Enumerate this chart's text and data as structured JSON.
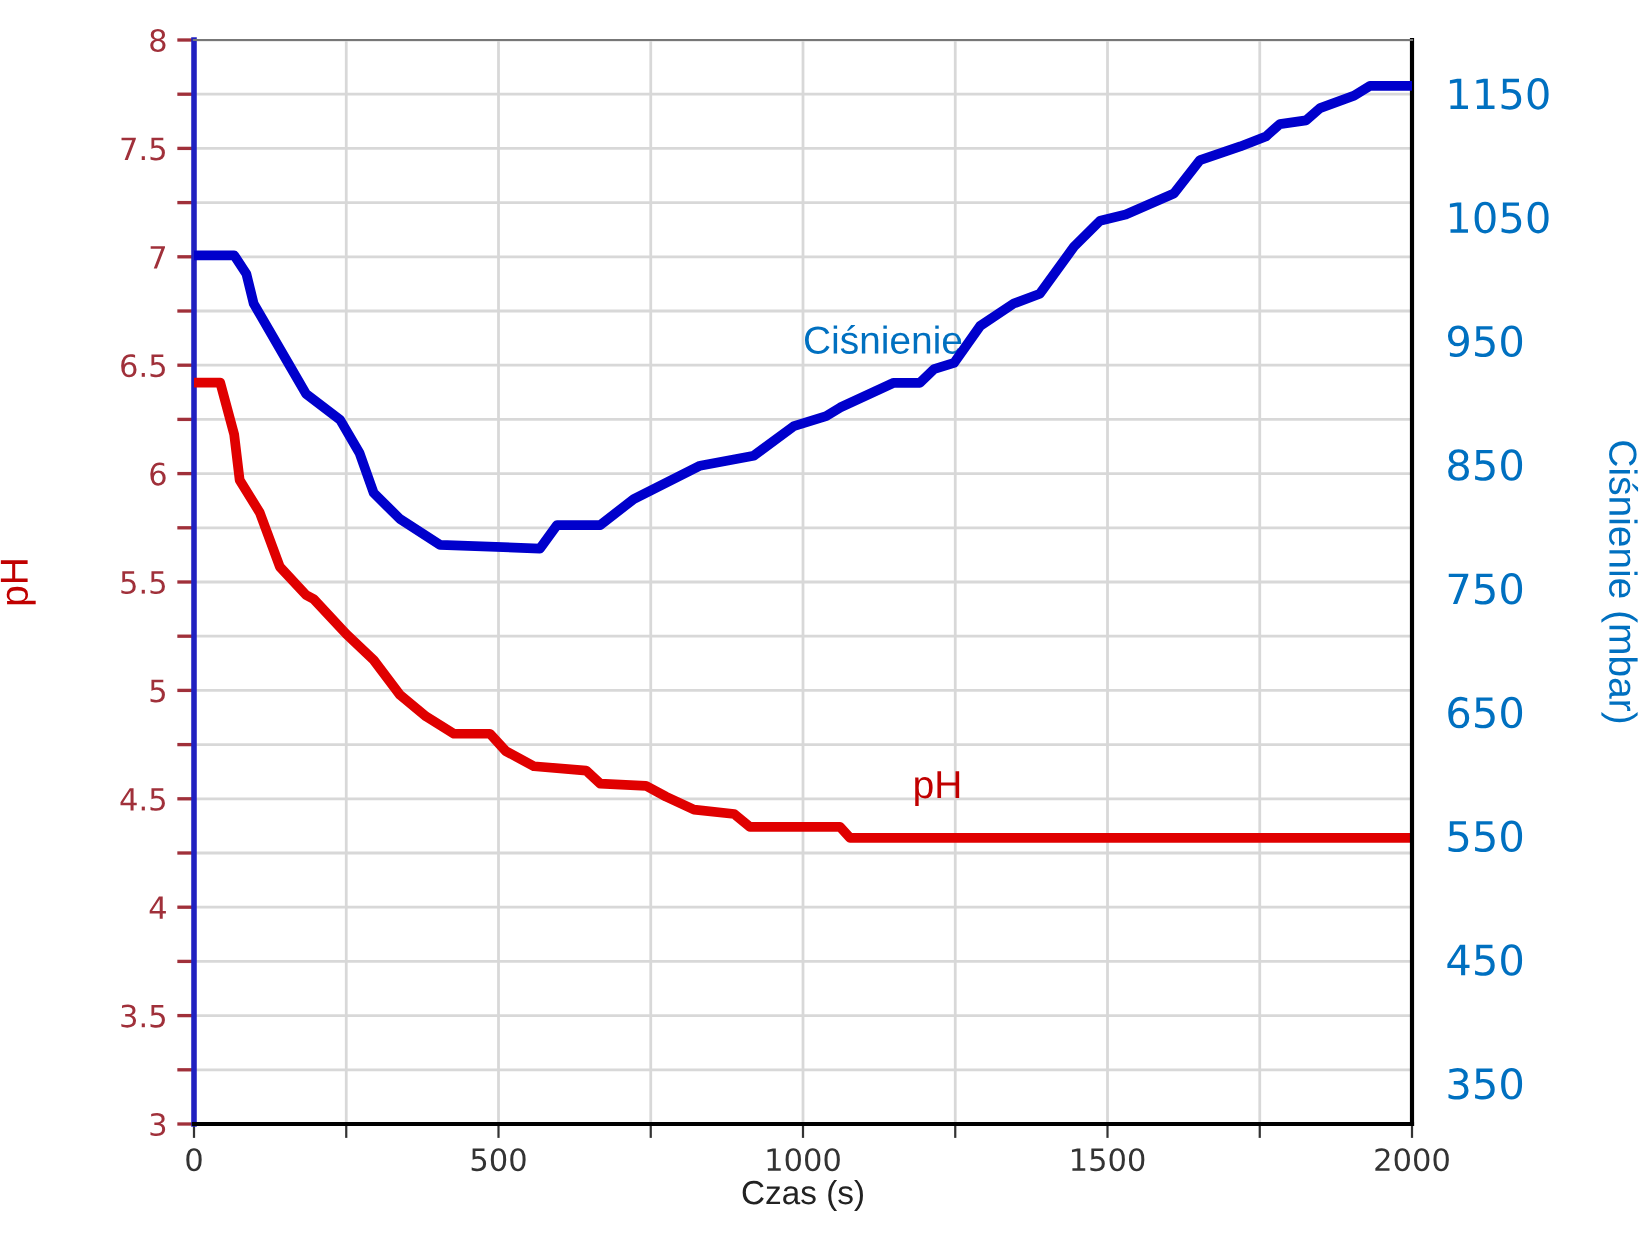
{
  "chart_data": {
    "type": "line",
    "xlabel": "Czas (s)",
    "ylabel": "pH",
    "y2label": "Ciśnienie (mbar)",
    "xlim": [
      0,
      2000
    ],
    "xticks": [
      0,
      {
        "value": 250,
        "label": null
      },
      500,
      {
        "value": 750,
        "label": null
      },
      1000,
      {
        "value": 1250,
        "label": null
      },
      1500,
      {
        "value": 1750,
        "label": null
      },
      2000
    ],
    "ylim": [
      3,
      8
    ],
    "yticks": [
      3,
      {
        "value": 3.25,
        "label": null
      },
      3.5,
      {
        "value": 3.75,
        "label": null
      },
      4,
      {
        "value": 4.25,
        "label": null
      },
      4.5,
      {
        "value": 4.75,
        "label": null
      },
      5,
      {
        "value": 5.25,
        "label": null
      },
      5.5,
      {
        "value": 5.75,
        "label": null
      },
      6,
      {
        "value": 6.25,
        "label": null
      },
      6.5,
      {
        "value": 6.75,
        "label": null
      },
      7,
      {
        "value": 7.25,
        "label": null
      },
      7.5,
      {
        "value": 7.75,
        "label": null
      },
      8
    ],
    "y2lim": [
      317,
      1193
    ],
    "y2ticks": [
      350,
      450,
      550,
      650,
      750,
      850,
      950,
      1050,
      1150
    ],
    "grid": true,
    "legend": false,
    "marker": "none",
    "line_style": "solid",
    "series": [
      {
        "name": "pH",
        "color": "#e00000",
        "x": [
          0,
          43,
          66,
          75,
          108,
          141,
          184,
          197,
          250,
          295,
          338,
          381,
          427,
          486,
          512,
          558,
          644,
          667,
          742,
          775,
          821,
          887,
          913,
          1061,
          1077,
          2000
        ],
        "values": [
          6.42,
          6.42,
          6.18,
          5.97,
          5.82,
          5.57,
          5.44,
          5.42,
          5.26,
          5.14,
          4.98,
          4.88,
          4.8,
          4.8,
          4.72,
          4.65,
          4.63,
          4.57,
          4.56,
          4.51,
          4.45,
          4.43,
          4.37,
          4.37,
          4.32,
          4.32
        ]
      },
      {
        "name": "Ciśnienie",
        "color": "#0000cc",
        "axis": "y2",
        "x": [
          0,
          66,
          86,
          98,
          151,
          184,
          240,
          272,
          295,
          338,
          404,
          568,
          596,
          667,
          722,
          831,
          919,
          985,
          1038,
          1061,
          1149,
          1192,
          1215,
          1248,
          1291,
          1346,
          1389,
          1445,
          1488,
          1530,
          1609,
          1652,
          1718,
          1760,
          1783,
          1826,
          1849,
          1905,
          1931,
          1997
        ],
        "values": [
          1019,
          1019,
          1004,
          980,
          935,
          907,
          886,
          859,
          827,
          806,
          785,
          782,
          801,
          801,
          822,
          849,
          857,
          881,
          889,
          896,
          916,
          916,
          927,
          932,
          962,
          980,
          988,
          1026,
          1047,
          1052,
          1069,
          1096,
          1107,
          1115,
          1125,
          1128,
          1138,
          1148,
          1156,
          1156
        ]
      }
    ]
  }
}
